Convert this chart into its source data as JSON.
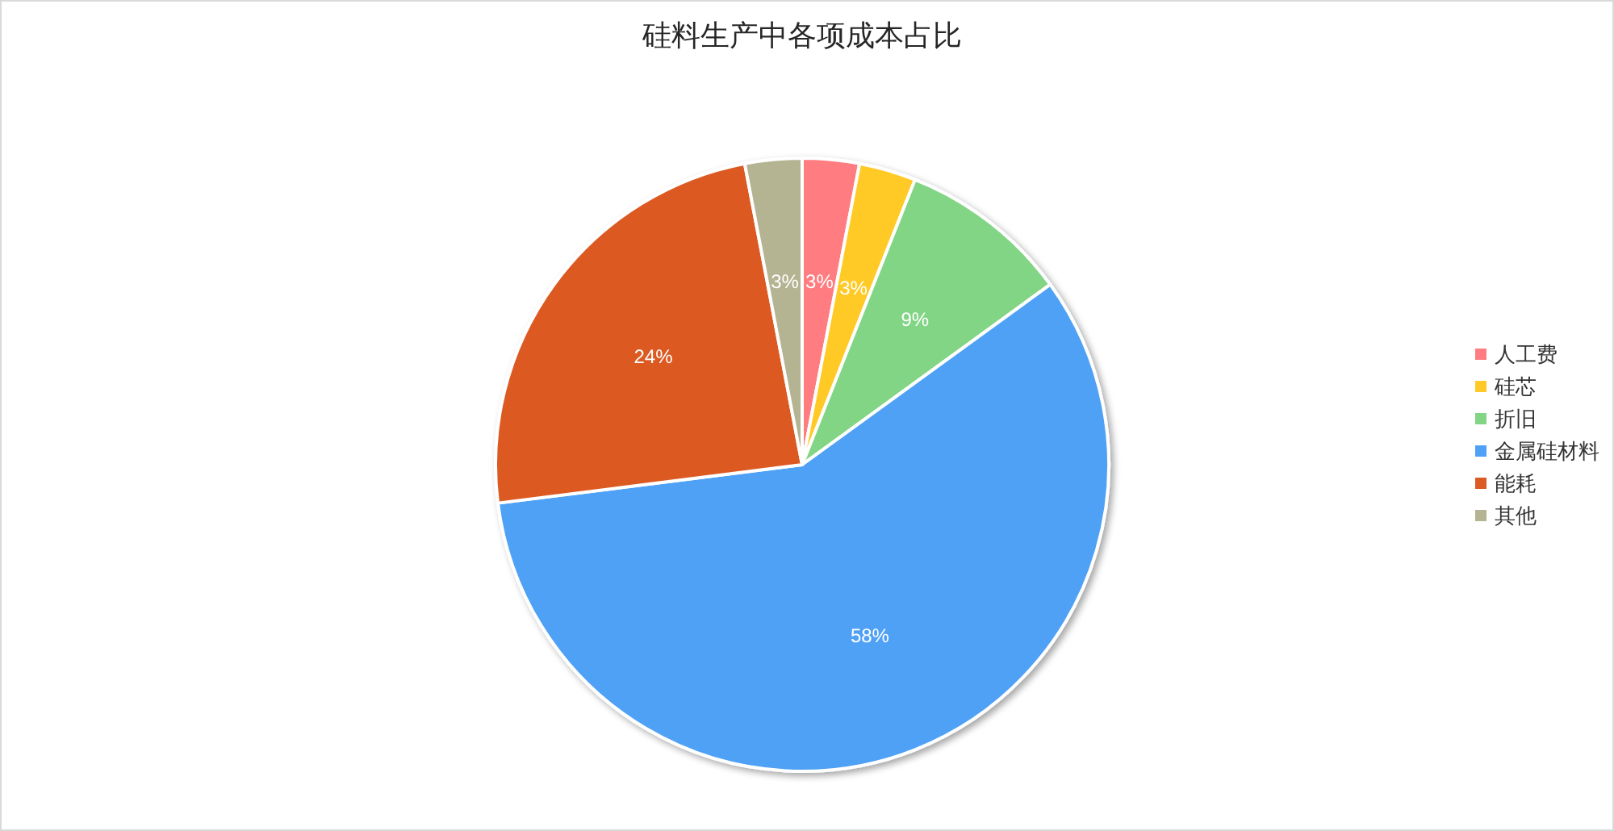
{
  "chart_data": {
    "type": "pie",
    "title": "硅料生产中各项成本占比",
    "categories": [
      "人工费",
      "硅芯",
      "折旧",
      "金属硅材料",
      "能耗",
      "其他"
    ],
    "values": [
      3,
      3,
      9,
      58,
      24,
      3
    ],
    "colors": [
      "#ff7c80",
      "#ffca28",
      "#82d585",
      "#4fa1f5",
      "#dc5a23",
      "#b4b392"
    ],
    "value_labels": [
      "3%",
      "3%",
      "9%",
      "58%",
      "24%",
      "3%"
    ],
    "legend": "right"
  }
}
